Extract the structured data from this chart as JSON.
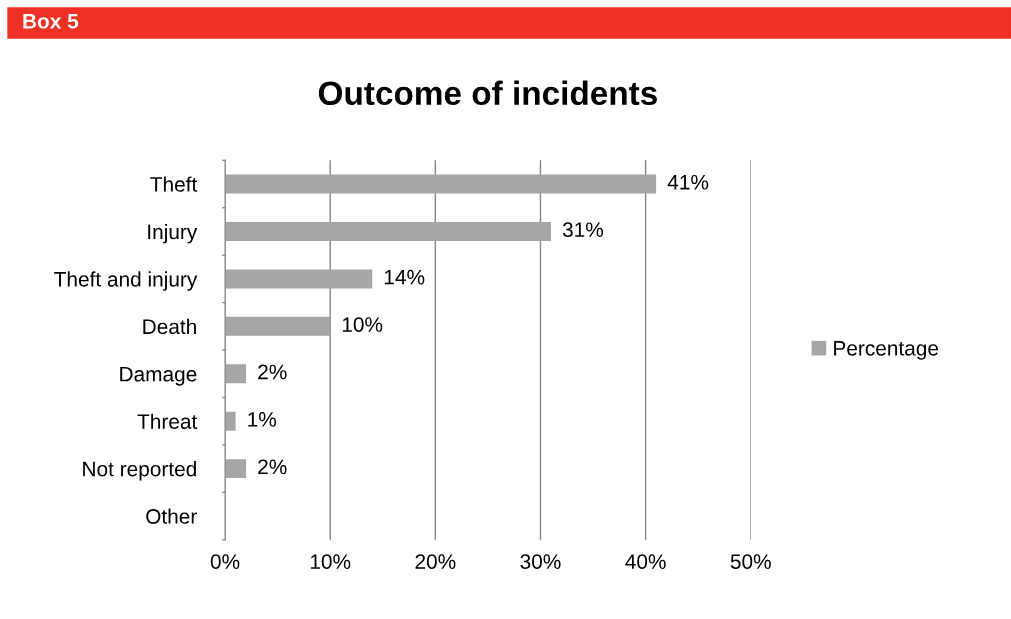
{
  "chart_data": {
    "type": "bar",
    "orientation": "horizontal",
    "title": "Outcome of incidents",
    "annotations": [
      "Box 5"
    ],
    "categories": [
      "Theft",
      "Injury",
      "Theft and injury",
      "Death",
      "Damage",
      "Threat",
      "Not reported",
      "Other"
    ],
    "series": [
      {
        "name": "Percentage",
        "color": "#a6a6a6",
        "values": [
          41,
          31,
          14,
          10,
          2,
          1,
          2,
          null
        ]
      }
    ],
    "value_labels": [
      "41%",
      "31%",
      "14%",
      "10%",
      "2%",
      "1%",
      "2%",
      null
    ],
    "xlim": [
      0,
      50
    ],
    "xticks": [
      {
        "value": 0,
        "label": "0%"
      },
      {
        "value": 10,
        "label": "10%"
      },
      {
        "value": 20,
        "label": "20%"
      },
      {
        "value": 30,
        "label": "30%"
      },
      {
        "value": 40,
        "label": "40%"
      },
      {
        "value": 50,
        "label": "50%"
      }
    ],
    "grid": "x",
    "legend": "right"
  }
}
